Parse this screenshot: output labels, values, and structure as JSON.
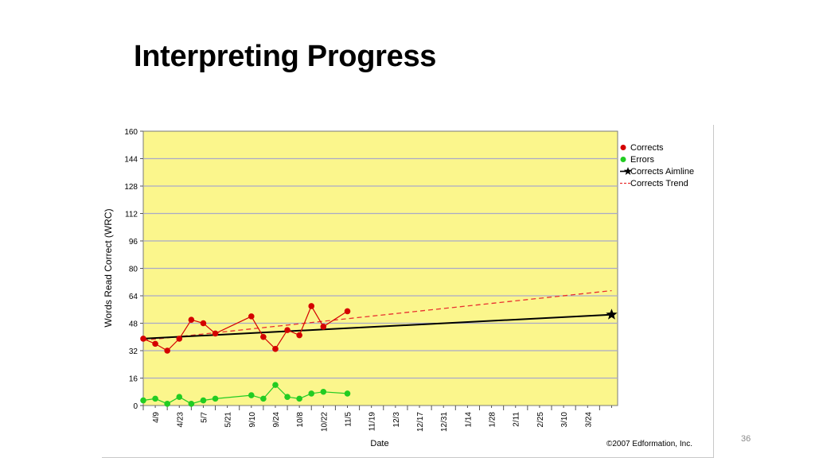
{
  "slide": {
    "title": "Interpreting Progress",
    "page_number": "36"
  },
  "chart_data": {
    "type": "line",
    "ylabel": "Words Read Correct (WRC)",
    "xlabel": "Date",
    "copyright": "©2007 Edformation, Inc.",
    "ylim": [
      0,
      160
    ],
    "yticks": [
      0,
      16,
      32,
      48,
      64,
      80,
      96,
      112,
      128,
      144,
      160
    ],
    "grid": true,
    "legend_position": "top-right",
    "colors": {
      "plot_background": "#fbf68c",
      "grid": "#a9a9c8",
      "corrects": "#d40000",
      "errors": "#22cc22",
      "aimline": "#000000",
      "trend": "#e83030"
    },
    "x_tick_labels": [
      "4/9",
      "4/23",
      "5/7",
      "5/21",
      "9/10",
      "9/24",
      "10/8",
      "10/22",
      "11/5",
      "11/19",
      "12/3",
      "12/17",
      "12/31",
      "1/14",
      "1/28",
      "2/11",
      "2/25",
      "3/10",
      "3/24"
    ],
    "x_range": [
      0,
      39.5
    ],
    "series": [
      {
        "name": "Corrects",
        "style": "marker-line",
        "x": [
          0,
          1,
          2,
          3,
          4,
          5,
          6,
          9,
          10,
          11,
          12,
          13,
          14,
          15,
          17
        ],
        "values": [
          39,
          36,
          32,
          39,
          50,
          48,
          42,
          52,
          40,
          33,
          44,
          41,
          58,
          46,
          55
        ]
      },
      {
        "name": "Errors",
        "style": "marker-line",
        "x": [
          0,
          1,
          2,
          3,
          4,
          5,
          6,
          9,
          10,
          11,
          12,
          13,
          14,
          15,
          17
        ],
        "values": [
          3,
          4,
          1,
          5,
          1,
          3,
          4,
          6,
          4,
          12,
          5,
          4,
          7,
          8,
          7
        ]
      },
      {
        "name": "Corrects Aimline",
        "style": "solid-line",
        "x": [
          0,
          39
        ],
        "values": [
          39,
          53
        ]
      },
      {
        "name": "Corrects Trend",
        "style": "dashed-line",
        "x": [
          0,
          39
        ],
        "values": [
          38,
          67
        ]
      }
    ]
  }
}
